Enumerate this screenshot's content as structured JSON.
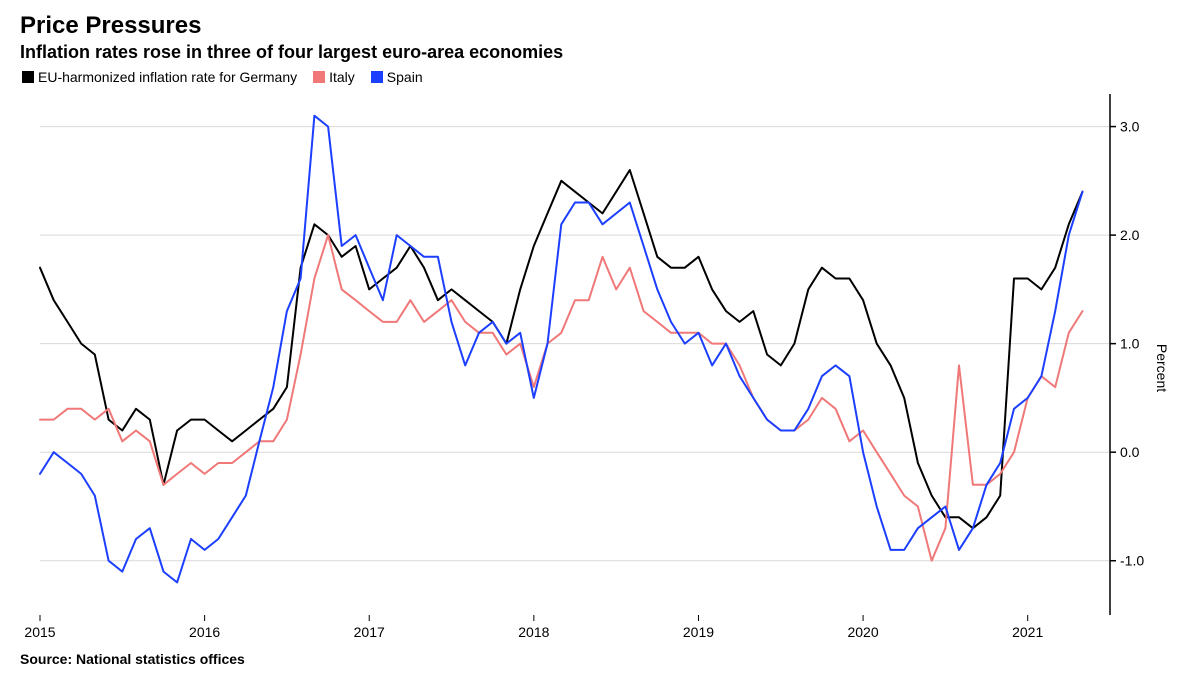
{
  "chart": {
    "type": "line",
    "title": "Price Pressures",
    "subtitle": "Inflation rates rose in three of four largest euro-area economies",
    "source": "Source: National statistics offices",
    "ylabel": "Percent",
    "background_color": "#ffffff",
    "grid_color": "#d9d9d9",
    "axis_color": "#000000",
    "text_color": "#000000",
    "title_fontsize": 24,
    "subtitle_fontsize": 18,
    "label_fontsize": 14,
    "tick_fontsize": 14,
    "line_width": 2,
    "x_start": 2015.0,
    "x_end": 2021.5,
    "x_ticks": [
      2015,
      2016,
      2017,
      2018,
      2019,
      2020,
      2021
    ],
    "x_tick_labels": [
      "2015",
      "2016",
      "2017",
      "2018",
      "2019",
      "2020",
      "2021"
    ],
    "ylim": [
      -1.5,
      3.3
    ],
    "y_ticks": [
      -1.0,
      0.0,
      1.0,
      2.0,
      3.0
    ],
    "y_tick_labels": [
      "-1.0",
      "0.0",
      "1.0",
      "2.0",
      "3.0"
    ],
    "series": [
      {
        "name": "EU-harmonized inflation rate for Germany",
        "color": "#000000",
        "values": [
          [
            2015.0,
            1.7
          ],
          [
            2015.083,
            1.4
          ],
          [
            2015.167,
            1.2
          ],
          [
            2015.25,
            1.0
          ],
          [
            2015.333,
            0.9
          ],
          [
            2015.417,
            0.3
          ],
          [
            2015.5,
            0.2
          ],
          [
            2015.583,
            0.4
          ],
          [
            2015.667,
            0.3
          ],
          [
            2015.75,
            -0.3
          ],
          [
            2015.833,
            0.2
          ],
          [
            2015.917,
            0.3
          ],
          [
            2016.0,
            0.3
          ],
          [
            2016.083,
            0.2
          ],
          [
            2016.167,
            0.1
          ],
          [
            2016.25,
            0.2
          ],
          [
            2016.333,
            0.3
          ],
          [
            2016.417,
            0.4
          ],
          [
            2016.5,
            0.6
          ],
          [
            2016.583,
            1.7
          ],
          [
            2016.667,
            2.1
          ],
          [
            2016.75,
            2.0
          ],
          [
            2016.833,
            1.8
          ],
          [
            2016.917,
            1.9
          ],
          [
            2017.0,
            1.5
          ],
          [
            2017.083,
            1.6
          ],
          [
            2017.167,
            1.7
          ],
          [
            2017.25,
            1.9
          ],
          [
            2017.333,
            1.7
          ],
          [
            2017.417,
            1.4
          ],
          [
            2017.5,
            1.5
          ],
          [
            2017.583,
            1.4
          ],
          [
            2017.667,
            1.3
          ],
          [
            2017.75,
            1.2
          ],
          [
            2017.833,
            1.0
          ],
          [
            2017.917,
            1.5
          ],
          [
            2018.0,
            1.9
          ],
          [
            2018.083,
            2.2
          ],
          [
            2018.167,
            2.5
          ],
          [
            2018.25,
            2.4
          ],
          [
            2018.333,
            2.3
          ],
          [
            2018.417,
            2.2
          ],
          [
            2018.5,
            2.4
          ],
          [
            2018.583,
            2.6
          ],
          [
            2018.667,
            2.2
          ],
          [
            2018.75,
            1.8
          ],
          [
            2018.833,
            1.7
          ],
          [
            2018.917,
            1.7
          ],
          [
            2019.0,
            1.8
          ],
          [
            2019.083,
            1.5
          ],
          [
            2019.167,
            1.3
          ],
          [
            2019.25,
            1.2
          ],
          [
            2019.333,
            1.3
          ],
          [
            2019.417,
            0.9
          ],
          [
            2019.5,
            0.8
          ],
          [
            2019.583,
            1.0
          ],
          [
            2019.667,
            1.5
          ],
          [
            2019.75,
            1.7
          ],
          [
            2019.833,
            1.6
          ],
          [
            2019.917,
            1.6
          ],
          [
            2020.0,
            1.4
          ],
          [
            2020.083,
            1.0
          ],
          [
            2020.167,
            0.8
          ],
          [
            2020.25,
            0.5
          ],
          [
            2020.333,
            -0.1
          ],
          [
            2020.417,
            -0.4
          ],
          [
            2020.5,
            -0.6
          ],
          [
            2020.583,
            -0.6
          ],
          [
            2020.667,
            -0.7
          ],
          [
            2020.75,
            -0.6
          ],
          [
            2020.833,
            -0.4
          ],
          [
            2020.917,
            1.6
          ],
          [
            2021.0,
            1.6
          ],
          [
            2021.083,
            1.5
          ],
          [
            2021.167,
            1.7
          ],
          [
            2021.25,
            2.1
          ],
          [
            2021.333,
            2.4
          ]
        ]
      },
      {
        "name": "Italy",
        "color": "#f07878",
        "values": [
          [
            2015.0,
            0.3
          ],
          [
            2015.083,
            0.3
          ],
          [
            2015.167,
            0.4
          ],
          [
            2015.25,
            0.4
          ],
          [
            2015.333,
            0.3
          ],
          [
            2015.417,
            0.4
          ],
          [
            2015.5,
            0.1
          ],
          [
            2015.583,
            0.2
          ],
          [
            2015.667,
            0.1
          ],
          [
            2015.75,
            -0.3
          ],
          [
            2015.833,
            -0.2
          ],
          [
            2015.917,
            -0.1
          ],
          [
            2016.0,
            -0.2
          ],
          [
            2016.083,
            -0.1
          ],
          [
            2016.167,
            -0.1
          ],
          [
            2016.25,
            0.0
          ],
          [
            2016.333,
            0.1
          ],
          [
            2016.417,
            0.1
          ],
          [
            2016.5,
            0.3
          ],
          [
            2016.583,
            0.9
          ],
          [
            2016.667,
            1.6
          ],
          [
            2016.75,
            2.0
          ],
          [
            2016.833,
            1.5
          ],
          [
            2016.917,
            1.4
          ],
          [
            2017.0,
            1.3
          ],
          [
            2017.083,
            1.2
          ],
          [
            2017.167,
            1.2
          ],
          [
            2017.25,
            1.4
          ],
          [
            2017.333,
            1.2
          ],
          [
            2017.417,
            1.3
          ],
          [
            2017.5,
            1.4
          ],
          [
            2017.583,
            1.2
          ],
          [
            2017.667,
            1.1
          ],
          [
            2017.75,
            1.1
          ],
          [
            2017.833,
            0.9
          ],
          [
            2017.917,
            1.0
          ],
          [
            2018.0,
            0.6
          ],
          [
            2018.083,
            1.0
          ],
          [
            2018.167,
            1.1
          ],
          [
            2018.25,
            1.4
          ],
          [
            2018.333,
            1.4
          ],
          [
            2018.417,
            1.8
          ],
          [
            2018.5,
            1.5
          ],
          [
            2018.583,
            1.7
          ],
          [
            2018.667,
            1.3
          ],
          [
            2018.75,
            1.2
          ],
          [
            2018.833,
            1.1
          ],
          [
            2018.917,
            1.1
          ],
          [
            2019.0,
            1.1
          ],
          [
            2019.083,
            1.0
          ],
          [
            2019.167,
            1.0
          ],
          [
            2019.25,
            0.8
          ],
          [
            2019.333,
            0.5
          ],
          [
            2019.417,
            0.3
          ],
          [
            2019.5,
            0.2
          ],
          [
            2019.583,
            0.2
          ],
          [
            2019.667,
            0.3
          ],
          [
            2019.75,
            0.5
          ],
          [
            2019.833,
            0.4
          ],
          [
            2019.917,
            0.1
          ],
          [
            2020.0,
            0.2
          ],
          [
            2020.083,
            0.0
          ],
          [
            2020.167,
            -0.2
          ],
          [
            2020.25,
            -0.4
          ],
          [
            2020.333,
            -0.5
          ],
          [
            2020.417,
            -1.0
          ],
          [
            2020.5,
            -0.7
          ],
          [
            2020.583,
            0.8
          ],
          [
            2020.667,
            -0.3
          ],
          [
            2020.75,
            -0.3
          ],
          [
            2020.833,
            -0.2
          ],
          [
            2020.917,
            0.0
          ],
          [
            2021.0,
            0.5
          ],
          [
            2021.083,
            0.7
          ],
          [
            2021.167,
            0.6
          ],
          [
            2021.25,
            1.1
          ],
          [
            2021.333,
            1.3
          ]
        ]
      },
      {
        "name": "Spain",
        "color": "#1c3fff",
        "values": [
          [
            2015.0,
            -0.2
          ],
          [
            2015.083,
            0.0
          ],
          [
            2015.167,
            -0.1
          ],
          [
            2015.25,
            -0.2
          ],
          [
            2015.333,
            -0.4
          ],
          [
            2015.417,
            -1.0
          ],
          [
            2015.5,
            -1.1
          ],
          [
            2015.583,
            -0.8
          ],
          [
            2015.667,
            -0.7
          ],
          [
            2015.75,
            -1.1
          ],
          [
            2015.833,
            -1.2
          ],
          [
            2015.917,
            -0.8
          ],
          [
            2016.0,
            -0.9
          ],
          [
            2016.083,
            -0.8
          ],
          [
            2016.167,
            -0.6
          ],
          [
            2016.25,
            -0.4
          ],
          [
            2016.333,
            0.1
          ],
          [
            2016.417,
            0.6
          ],
          [
            2016.5,
            1.3
          ],
          [
            2016.583,
            1.6
          ],
          [
            2016.667,
            3.1
          ],
          [
            2016.75,
            3.0
          ],
          [
            2016.833,
            1.9
          ],
          [
            2016.917,
            2.0
          ],
          [
            2017.0,
            1.7
          ],
          [
            2017.083,
            1.4
          ],
          [
            2017.167,
            2.0
          ],
          [
            2017.25,
            1.9
          ],
          [
            2017.333,
            1.8
          ],
          [
            2017.417,
            1.8
          ],
          [
            2017.5,
            1.2
          ],
          [
            2017.583,
            0.8
          ],
          [
            2017.667,
            1.1
          ],
          [
            2017.75,
            1.2
          ],
          [
            2017.833,
            1.0
          ],
          [
            2017.917,
            1.1
          ],
          [
            2018.0,
            0.5
          ],
          [
            2018.083,
            1.0
          ],
          [
            2018.167,
            2.1
          ],
          [
            2018.25,
            2.3
          ],
          [
            2018.333,
            2.3
          ],
          [
            2018.417,
            2.1
          ],
          [
            2018.5,
            2.2
          ],
          [
            2018.583,
            2.3
          ],
          [
            2018.667,
            1.9
          ],
          [
            2018.75,
            1.5
          ],
          [
            2018.833,
            1.2
          ],
          [
            2018.917,
            1.0
          ],
          [
            2019.0,
            1.1
          ],
          [
            2019.083,
            0.8
          ],
          [
            2019.167,
            1.0
          ],
          [
            2019.25,
            0.7
          ],
          [
            2019.333,
            0.5
          ],
          [
            2019.417,
            0.3
          ],
          [
            2019.5,
            0.2
          ],
          [
            2019.583,
            0.2
          ],
          [
            2019.667,
            0.4
          ],
          [
            2019.75,
            0.7
          ],
          [
            2019.833,
            0.8
          ],
          [
            2019.917,
            0.7
          ],
          [
            2020.0,
            0.0
          ],
          [
            2020.083,
            -0.5
          ],
          [
            2020.167,
            -0.9
          ],
          [
            2020.25,
            -0.9
          ],
          [
            2020.333,
            -0.7
          ],
          [
            2020.417,
            -0.6
          ],
          [
            2020.5,
            -0.5
          ],
          [
            2020.583,
            -0.9
          ],
          [
            2020.667,
            -0.7
          ],
          [
            2020.75,
            -0.3
          ],
          [
            2020.833,
            -0.1
          ],
          [
            2020.917,
            0.4
          ],
          [
            2021.0,
            0.5
          ],
          [
            2021.083,
            0.7
          ],
          [
            2021.167,
            1.3
          ],
          [
            2021.25,
            2.0
          ],
          [
            2021.333,
            2.4
          ]
        ]
      }
    ]
  }
}
